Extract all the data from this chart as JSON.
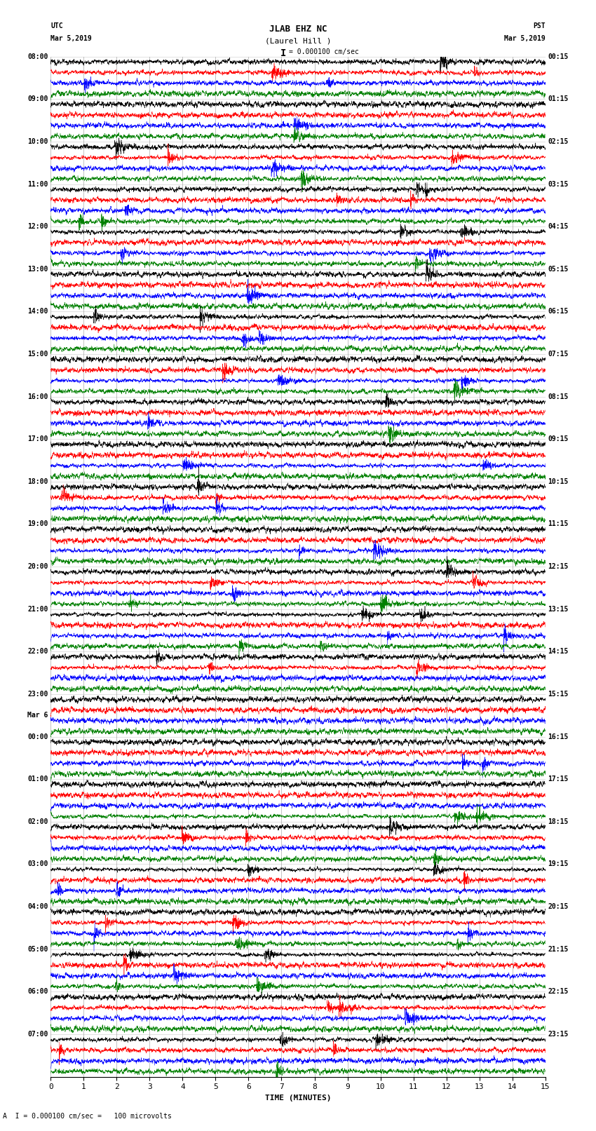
{
  "title_line1": "JLAB EHZ NC",
  "title_line2": "(Laurel Hill )",
  "scale_text": "= 0.000100 cm/sec",
  "scale_marker": "I",
  "footer_text": "A  I = 0.000100 cm/sec =   100 microvolts",
  "utc_label": "UTC",
  "utc_date": "Mar 5,2019",
  "pst_label": "PST",
  "pst_date": "Mar 5,2019",
  "xlabel": "TIME (MINUTES)",
  "left_times": [
    "08:00",
    "09:00",
    "10:00",
    "11:00",
    "12:00",
    "13:00",
    "14:00",
    "15:00",
    "16:00",
    "17:00",
    "18:00",
    "19:00",
    "20:00",
    "21:00",
    "22:00",
    "23:00",
    "00:00",
    "01:00",
    "02:00",
    "03:00",
    "04:00",
    "05:00",
    "06:00",
    "07:00"
  ],
  "mar6_row": 16,
  "right_times": [
    "00:15",
    "01:15",
    "02:15",
    "03:15",
    "04:15",
    "05:15",
    "06:15",
    "07:15",
    "08:15",
    "09:15",
    "10:15",
    "11:15",
    "12:15",
    "13:15",
    "14:15",
    "15:15",
    "16:15",
    "17:15",
    "18:15",
    "19:15",
    "20:15",
    "21:15",
    "22:15",
    "23:15"
  ],
  "n_rows": 24,
  "traces_per_row": 4,
  "colors": [
    "black",
    "red",
    "blue",
    "green"
  ],
  "minutes": 15,
  "bg_color": "white",
  "fig_width": 8.5,
  "fig_height": 16.13,
  "dpi": 100,
  "noise_scale": [
    0.18,
    0.22,
    0.2,
    0.18
  ],
  "font_size": 7,
  "title_font_size": 9,
  "vline_color": "#888888",
  "vline_lw": 0.5
}
